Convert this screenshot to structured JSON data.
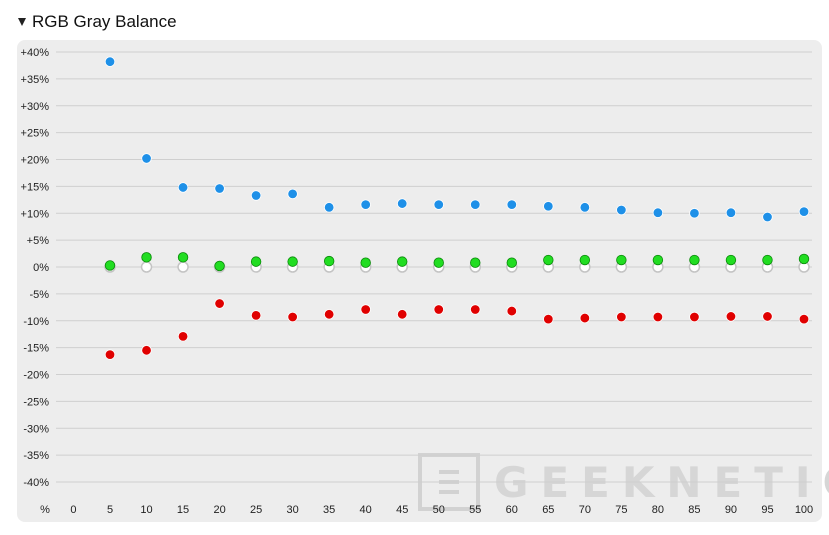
{
  "header": {
    "toggle_icon": "triangle-down-icon",
    "title": "RGB Gray Balance"
  },
  "watermark": {
    "text": "GEEKNETIC"
  },
  "colors": {
    "red": "#e00000",
    "green": "#22dd22",
    "blue": "#1e90e8",
    "neutral": "#ffffff",
    "grid": "#cfcfcf",
    "panel": "#ededed"
  },
  "chart_data": {
    "type": "scatter",
    "title": "RGB Gray Balance",
    "x_unit_label": "%",
    "x": [
      0,
      5,
      10,
      15,
      20,
      25,
      30,
      35,
      40,
      45,
      50,
      55,
      60,
      65,
      70,
      75,
      80,
      85,
      90,
      95,
      100
    ],
    "ylim": [
      -40,
      40
    ],
    "yticks": [
      "+40%",
      "+35%",
      "+30%",
      "+25%",
      "+20%",
      "+15%",
      "+10%",
      "+5%",
      "0%",
      "-5%",
      "-10%",
      "-15%",
      "-20%",
      "-25%",
      "-30%",
      "-35%",
      "-40%"
    ],
    "ytick_values": [
      40,
      35,
      30,
      25,
      20,
      15,
      10,
      5,
      0,
      -5,
      -10,
      -15,
      -20,
      -25,
      -30,
      -35,
      -40
    ],
    "grid": true,
    "series": [
      {
        "key": "neutral",
        "x": [
          5,
          10,
          15,
          20,
          25,
          30,
          35,
          40,
          45,
          50,
          55,
          60,
          65,
          70,
          75,
          80,
          85,
          90,
          95,
          100
        ],
        "values": [
          0,
          0,
          0,
          0,
          0,
          0,
          0,
          0,
          0,
          0,
          0,
          0,
          0,
          0,
          0,
          0,
          0,
          0,
          0,
          0
        ]
      },
      {
        "key": "blue",
        "x": [
          5,
          10,
          15,
          20,
          25,
          30,
          35,
          40,
          45,
          50,
          55,
          60,
          65,
          70,
          75,
          80,
          85,
          90,
          95,
          100
        ],
        "values": [
          38.2,
          20.2,
          14.8,
          14.6,
          13.3,
          13.6,
          11.1,
          11.6,
          11.8,
          11.6,
          11.6,
          11.6,
          11.3,
          11.1,
          10.6,
          10.1,
          10.0,
          10.1,
          9.3,
          10.3
        ]
      },
      {
        "key": "green",
        "x": [
          5,
          10,
          15,
          20,
          25,
          30,
          35,
          40,
          45,
          50,
          55,
          60,
          65,
          70,
          75,
          80,
          85,
          90,
          95,
          100
        ],
        "values": [
          0.3,
          1.8,
          1.8,
          0.2,
          1.0,
          1.0,
          1.1,
          0.8,
          1.0,
          0.8,
          0.8,
          0.8,
          1.3,
          1.3,
          1.3,
          1.3,
          1.3,
          1.3,
          1.3,
          1.5
        ]
      },
      {
        "key": "red",
        "x": [
          5,
          10,
          15,
          20,
          25,
          30,
          35,
          40,
          45,
          50,
          55,
          60,
          65,
          70,
          75,
          80,
          85,
          90,
          95,
          100
        ],
        "values": [
          -16.3,
          -15.5,
          -12.9,
          -6.8,
          -9.0,
          -9.3,
          -8.8,
          -7.9,
          -8.8,
          -7.9,
          -7.9,
          -8.2,
          -9.7,
          -9.5,
          -9.3,
          -9.3,
          -9.3,
          -9.2,
          -9.2,
          -9.7
        ]
      }
    ]
  }
}
